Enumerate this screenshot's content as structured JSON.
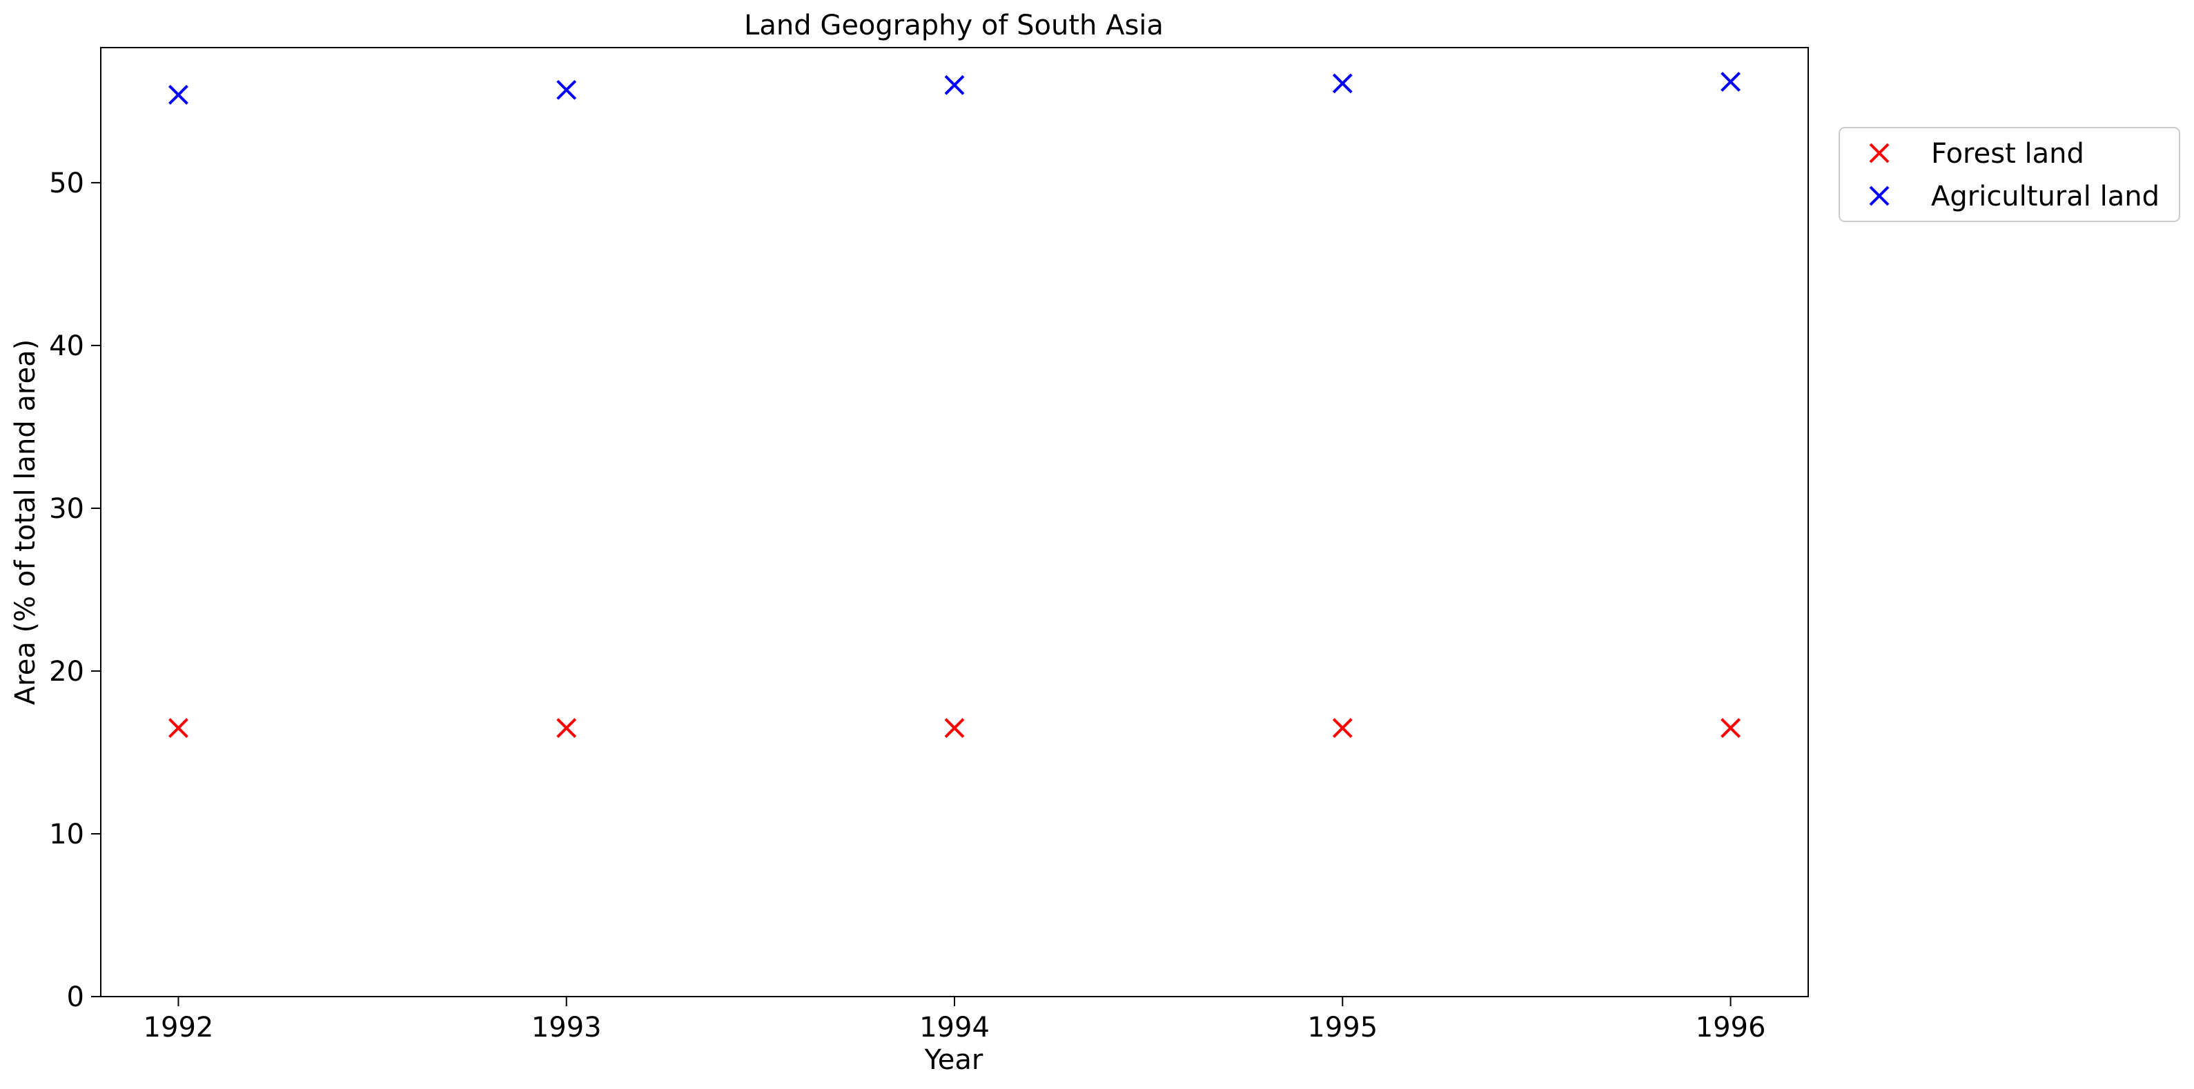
{
  "chart_data": {
    "type": "scatter",
    "title": "Land Geography of South Asia",
    "xlabel": "Year",
    "ylabel": "Area (% of total land area)",
    "x": [
      "1992",
      "1993",
      "1994",
      "1995",
      "1996"
    ],
    "xlim": [
      1991.8,
      1996.2
    ],
    "ylim": [
      0,
      58.3
    ],
    "yticks": [
      0,
      10,
      20,
      30,
      40,
      50
    ],
    "grid": false,
    "legend_position": "upper right, outside plot",
    "marker": "x",
    "series": [
      {
        "name": "Forest land",
        "color": "#ff0000",
        "values": [
          16.5,
          16.5,
          16.5,
          16.5,
          16.5
        ]
      },
      {
        "name": "Agricultural land",
        "color": "#0000ff",
        "values": [
          55.4,
          55.7,
          56.0,
          56.1,
          56.2
        ]
      }
    ]
  }
}
